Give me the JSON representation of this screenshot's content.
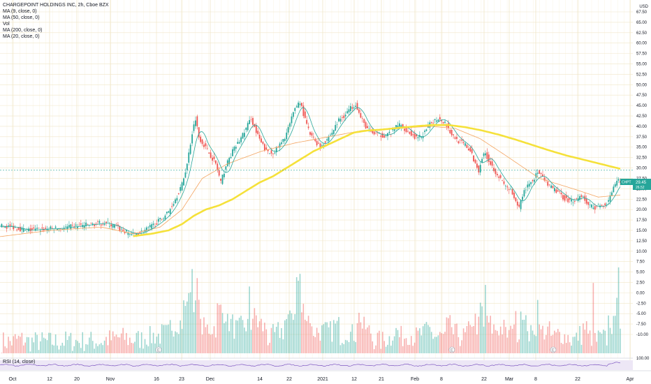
{
  "legend": {
    "title": "CHARGEPOINT HOLDINGS INC, 2h, Cboe BZX",
    "ma9": "MA (9, close, 0)",
    "ma50": "MA (50, close, 0)",
    "vol": "Vol",
    "ma200": "MA (200, close, 0)",
    "ma20": "MA (20, close, 0)",
    "rsi": "RSI (14, close)"
  },
  "currency": "USD",
  "price_badge": {
    "symbol": "CHPT",
    "price": "29.45",
    "sub": "26.52"
  },
  "earnings_marker": "E",
  "colors": {
    "up": "#26a69a",
    "down": "#ef5350",
    "ma200": "#f5e13a",
    "ma50": "#f4a460",
    "ma9": "#26a69a",
    "rsi": "#7e57c2"
  },
  "chart_data": {
    "type": "candlestick",
    "y_ticks": [
      "67.50",
      "65.00",
      "62.50",
      "60.00",
      "57.50",
      "55.00",
      "52.50",
      "50.00",
      "47.50",
      "45.00",
      "42.50",
      "40.00",
      "37.50",
      "35.00",
      "32.50",
      "30.00",
      "27.50",
      "25.00",
      "22.50",
      "20.00",
      "17.50",
      "15.00",
      "12.50",
      "10.00",
      "7.50",
      "5.00",
      "2.50",
      "0.00",
      "-2.50",
      "-5.00",
      "-7.50",
      "-10.00"
    ],
    "x_labels": [
      "Oct",
      "12",
      "20",
      "Nov",
      "16",
      "23",
      "Dec",
      "14",
      "22",
      "2021",
      "12",
      "21",
      "Feb",
      "8",
      "22",
      "Mar",
      "8",
      "22",
      "Apr"
    ],
    "ylim": [
      -10.0,
      67.5
    ],
    "close_path": [
      [
        0,
        16.0
      ],
      [
        8,
        15.8
      ],
      [
        15,
        15.0
      ],
      [
        25,
        15.3
      ],
      [
        35,
        15.5
      ],
      [
        45,
        16.0
      ],
      [
        55,
        16.5
      ],
      [
        62,
        16.8
      ],
      [
        68,
        16.0
      ],
      [
        75,
        14.5
      ],
      [
        79,
        14.0
      ],
      [
        85,
        14.8
      ],
      [
        90,
        16.0
      ],
      [
        95,
        17.5
      ],
      [
        100,
        19.5
      ],
      [
        104,
        22.5
      ],
      [
        108,
        26.0
      ],
      [
        111,
        31.0
      ],
      [
        114,
        38.5
      ],
      [
        116,
        42.0
      ],
      [
        118,
        37.5
      ],
      [
        121,
        35.5
      ],
      [
        125,
        33.0
      ],
      [
        128,
        31.0
      ],
      [
        131,
        26.5
      ],
      [
        134,
        30.5
      ],
      [
        138,
        34.0
      ],
      [
        142,
        36.5
      ],
      [
        146,
        39.5
      ],
      [
        149,
        42.0
      ],
      [
        152,
        38.5
      ],
      [
        155,
        36.0
      ],
      [
        158,
        34.0
      ],
      [
        161,
        33.5
      ],
      [
        164,
        34.5
      ],
      [
        168,
        36.5
      ],
      [
        172,
        40.5
      ],
      [
        175,
        44.5
      ],
      [
        178,
        46.0
      ],
      [
        181,
        41.5
      ],
      [
        184,
        38.0
      ],
      [
        187,
        36.5
      ],
      [
        190,
        35.0
      ],
      [
        193,
        36.5
      ],
      [
        197,
        38.5
      ],
      [
        201,
        41.5
      ],
      [
        204,
        42.5
      ],
      [
        207,
        44.0
      ],
      [
        211,
        45.5
      ],
      [
        214,
        42.0
      ],
      [
        217,
        40.0
      ],
      [
        220,
        38.5
      ],
      [
        224,
        38.0
      ],
      [
        228,
        37.8
      ],
      [
        232,
        38.5
      ],
      [
        236,
        40.5
      ],
      [
        240,
        39.5
      ],
      [
        244,
        38.0
      ],
      [
        248,
        37.0
      ],
      [
        252,
        38.5
      ],
      [
        256,
        41.0
      ],
      [
        260,
        42.0
      ],
      [
        264,
        41.0
      ],
      [
        268,
        38.0
      ],
      [
        272,
        36.5
      ],
      [
        276,
        35.5
      ],
      [
        279,
        34.0
      ],
      [
        282,
        31.0
      ],
      [
        284,
        29.5
      ],
      [
        286,
        32.5
      ],
      [
        288,
        33.5
      ],
      [
        291,
        31.0
      ],
      [
        295,
        28.5
      ],
      [
        299,
        26.0
      ],
      [
        303,
        24.5
      ],
      [
        306,
        21.5
      ],
      [
        308,
        20.5
      ],
      [
        310,
        23.5
      ],
      [
        313,
        26.0
      ],
      [
        316,
        27.0
      ],
      [
        319,
        29.0
      ],
      [
        322,
        27.5
      ],
      [
        326,
        25.5
      ],
      [
        330,
        24.5
      ],
      [
        334,
        23.0
      ],
      [
        338,
        22.0
      ],
      [
        342,
        22.5
      ],
      [
        345,
        23.5
      ],
      [
        348,
        21.5
      ],
      [
        351,
        20.8
      ],
      [
        354,
        20.5
      ],
      [
        357,
        21.0
      ],
      [
        360,
        21.5
      ],
      [
        362,
        23.5
      ],
      [
        364,
        25.0
      ],
      [
        366,
        26.5
      ],
      [
        368,
        27.0
      ]
    ],
    "ma50_path": [
      [
        0,
        13.5
      ],
      [
        30,
        15.0
      ],
      [
        60,
        15.8
      ],
      [
        79,
        14.2
      ],
      [
        95,
        15.8
      ],
      [
        108,
        20.0
      ],
      [
        120,
        27.5
      ],
      [
        135,
        31.0
      ],
      [
        155,
        34.0
      ],
      [
        175,
        36.0
      ],
      [
        195,
        37.5
      ],
      [
        215,
        39.0
      ],
      [
        235,
        39.5
      ],
      [
        255,
        40.0
      ],
      [
        270,
        39.5
      ],
      [
        285,
        37.0
      ],
      [
        300,
        33.0
      ],
      [
        320,
        27.5
      ],
      [
        340,
        25.0
      ],
      [
        355,
        23.0
      ],
      [
        368,
        23.5
      ]
    ],
    "ma200_path": [
      [
        79,
        13.6
      ],
      [
        90,
        14.2
      ],
      [
        100,
        15.0
      ],
      [
        108,
        16.5
      ],
      [
        115,
        18.5
      ],
      [
        122,
        20.0
      ],
      [
        130,
        21.0
      ],
      [
        138,
        22.5
      ],
      [
        146,
        24.5
      ],
      [
        154,
        26.5
      ],
      [
        162,
        28.0
      ],
      [
        170,
        30.0
      ],
      [
        178,
        32.0
      ],
      [
        186,
        34.0
      ],
      [
        194,
        35.5
      ],
      [
        202,
        37.0
      ],
      [
        210,
        38.5
      ],
      [
        218,
        39.0
      ],
      [
        226,
        39.2
      ],
      [
        236,
        39.6
      ],
      [
        246,
        40.0
      ],
      [
        256,
        40.3
      ],
      [
        266,
        40.3
      ],
      [
        276,
        39.8
      ],
      [
        286,
        39.0
      ],
      [
        296,
        38.0
      ],
      [
        306,
        36.8
      ],
      [
        316,
        35.5
      ],
      [
        326,
        34.2
      ],
      [
        336,
        33.0
      ],
      [
        346,
        32.0
      ],
      [
        356,
        31.0
      ],
      [
        368,
        29.8
      ]
    ],
    "current_price": 29.45,
    "volume_scale": [
      0,
      10
    ],
    "rsi_range": [
      0,
      100
    ],
    "rsi_max_label": "100.00"
  }
}
